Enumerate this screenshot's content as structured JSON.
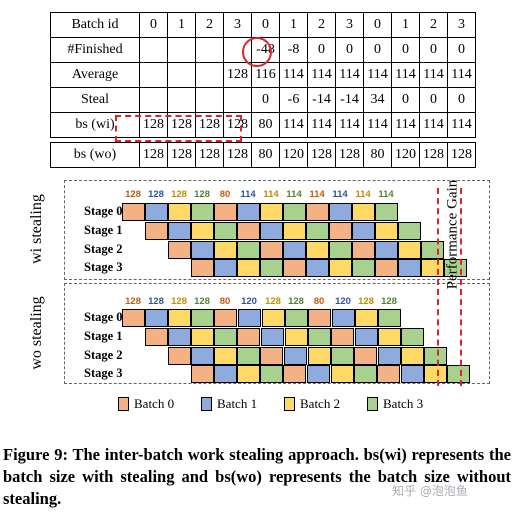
{
  "table": {
    "rows": [
      {
        "label": "Batch id",
        "cells": [
          "0",
          "1",
          "2",
          "3",
          "0",
          "1",
          "2",
          "3",
          "0",
          "1",
          "2",
          "3"
        ]
      },
      {
        "label": "#Finished",
        "cells": [
          "",
          "",
          "",
          "",
          "-48",
          "-8",
          "0",
          "0",
          "0",
          "0",
          "0",
          "0"
        ]
      },
      {
        "label": "Average",
        "cells": [
          "",
          "",
          "",
          "128",
          "116",
          "114",
          "114",
          "114",
          "114",
          "114",
          "114",
          "114"
        ]
      },
      {
        "label": "Steal",
        "cells": [
          "",
          "",
          "",
          "",
          "0",
          "-6",
          "-14",
          "-14",
          "34",
          "0",
          "0",
          "0"
        ]
      },
      {
        "label": "bs (wi)",
        "cells": [
          "128",
          "128",
          "128",
          "128",
          "80",
          "114",
          "114",
          "114",
          "114",
          "114",
          "114",
          "114"
        ]
      },
      {
        "label": "bs (wo)",
        "cells": [
          "128",
          "128",
          "128",
          "128",
          "80",
          "120",
          "128",
          "128",
          "80",
          "120",
          "128",
          "128"
        ]
      }
    ]
  },
  "wi": {
    "label": "wi stealing",
    "bs": [
      "128",
      "128",
      "128",
      "128",
      "80",
      "114",
      "114",
      "114",
      "114",
      "114",
      "114",
      "114"
    ],
    "stages": [
      "Stage 0",
      "Stage 1",
      "Stage 2",
      "Stage 3"
    ]
  },
  "wo": {
    "label": "wo stealing",
    "bs": [
      "128",
      "128",
      "128",
      "128",
      "80",
      "120",
      "128",
      "128",
      "80",
      "120",
      "128",
      "128"
    ],
    "stages": [
      "Stage 0",
      "Stage 1",
      "Stage 2",
      "Stage 3"
    ]
  },
  "gain_label": "Performance Gain",
  "legend": [
    {
      "label": "Batch 0",
      "color": "#f4b183"
    },
    {
      "label": "Batch 1",
      "color": "#8faadc"
    },
    {
      "label": "Batch 2",
      "color": "#ffd966"
    },
    {
      "label": "Batch 3",
      "color": "#a9d18e"
    }
  ],
  "bs_colors": [
    "#c55a11",
    "#2f5597",
    "#bf9000",
    "#548235"
  ],
  "caption": "Figure 9: The inter-batch work stealing approach. bs(wi) represents the batch size with stealing and bs(wo) represents the batch size without stealing.",
  "watermark": "知乎 @泡泡鱼"
}
